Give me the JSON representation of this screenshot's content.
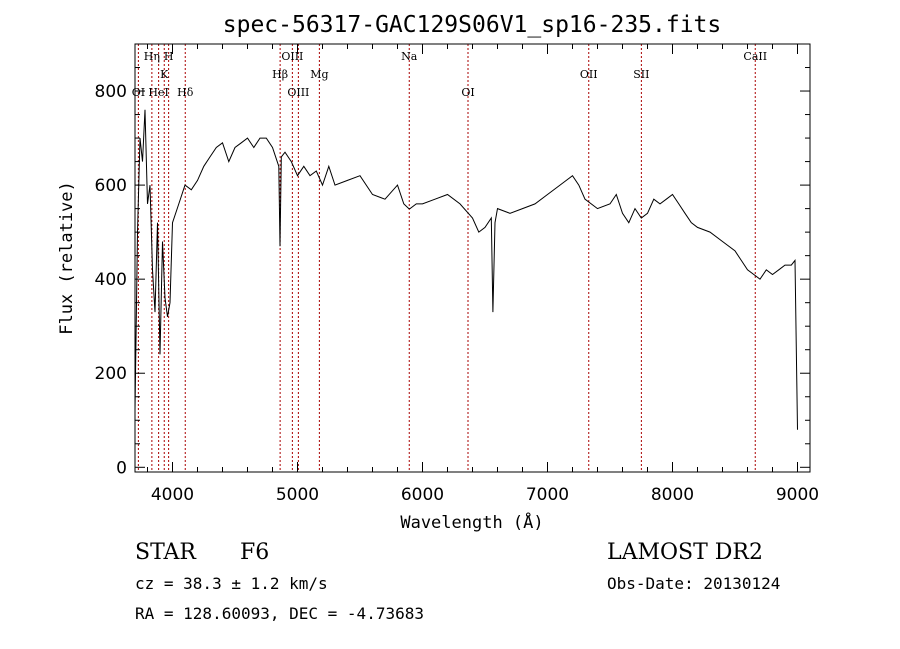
{
  "chart_data": {
    "type": "line",
    "title": "spec-56317-GAC129S06V1_sp16-235.fits",
    "xlabel": "Wavelength (Å)",
    "ylabel": "Flux (relative)",
    "xlim": [
      3700,
      9100
    ],
    "ylim": [
      -10,
      900
    ],
    "xticks": [
      4000,
      5000,
      6000,
      7000,
      8000,
      9000
    ],
    "yticks": [
      0,
      200,
      400,
      600,
      800
    ],
    "grid": false,
    "line_color": "#000000",
    "marker_color": "#aa0000",
    "series": [
      {
        "x": [
          3700,
          3720,
          3740,
          3760,
          3780,
          3800,
          3820,
          3840,
          3860,
          3880,
          3900,
          3920,
          3940,
          3960,
          3980,
          4000,
          4050,
          4100,
          4150,
          4200,
          4250,
          4300,
          4350,
          4400,
          4450,
          4500,
          4550,
          4600,
          4650,
          4700,
          4750,
          4800,
          4850,
          4860,
          4870,
          4900,
          4950,
          5000,
          5050,
          5100,
          5150,
          5200,
          5250,
          5300,
          5400,
          5500,
          5600,
          5700,
          5800,
          5850,
          5890,
          5900,
          5950,
          6000,
          6100,
          6200,
          6300,
          6400,
          6450,
          6500,
          6550,
          6563,
          6580,
          6600,
          6700,
          6800,
          6900,
          7000,
          7100,
          7150,
          7200,
          7250,
          7300,
          7400,
          7500,
          7550,
          7600,
          7650,
          7700,
          7750,
          7800,
          7850,
          7900,
          7950,
          8000,
          8050,
          8100,
          8150,
          8200,
          8300,
          8400,
          8500,
          8550,
          8600,
          8650,
          8700,
          8750,
          8800,
          8850,
          8900,
          8950,
          8980,
          9000
        ],
        "y": [
          120,
          500,
          700,
          650,
          760,
          560,
          600,
          420,
          330,
          520,
          240,
          480,
          360,
          320,
          350,
          520,
          560,
          600,
          590,
          610,
          640,
          660,
          680,
          690,
          650,
          680,
          690,
          700,
          680,
          700,
          700,
          680,
          640,
          470,
          660,
          670,
          650,
          620,
          640,
          620,
          630,
          600,
          640,
          600,
          610,
          620,
          580,
          570,
          600,
          560,
          550,
          550,
          560,
          560,
          570,
          580,
          560,
          530,
          500,
          510,
          530,
          330,
          520,
          550,
          540,
          550,
          560,
          580,
          600,
          610,
          620,
          600,
          570,
          550,
          560,
          580,
          540,
          520,
          550,
          530,
          540,
          570,
          560,
          570,
          580,
          560,
          540,
          520,
          510,
          500,
          480,
          460,
          440,
          420,
          410,
          400,
          420,
          410,
          420,
          430,
          430,
          440,
          80
        ]
      }
    ],
    "lines": [
      {
        "label": "OI",
        "x": 3727,
        "row": 3
      },
      {
        "label": "Hη",
        "x": 3835,
        "row": 1
      },
      {
        "label": "HeI",
        "x": 3889,
        "row": 3
      },
      {
        "label": "K",
        "x": 3934,
        "row": 2
      },
      {
        "label": "H",
        "x": 3969,
        "row": 1
      },
      {
        "label": "Hδ",
        "x": 4102,
        "row": 3
      },
      {
        "label": "Hβ",
        "x": 4861,
        "row": 2
      },
      {
        "label": "OIII",
        "x": 4959,
        "row": 1
      },
      {
        "label": "OIII",
        "x": 5007,
        "row": 3
      },
      {
        "label": "Mg",
        "x": 5175,
        "row": 2
      },
      {
        "label": "Na",
        "x": 5894,
        "row": 1
      },
      {
        "label": "OI",
        "x": 6364,
        "row": 3
      },
      {
        "label": "OII",
        "x": 7330,
        "row": 2
      },
      {
        "label": "SII",
        "x": 7751,
        "row": 2
      },
      {
        "label": "CaII",
        "x": 8662,
        "row": 1
      }
    ]
  },
  "info": {
    "object_class": "STAR",
    "subclass": "F6",
    "survey": "LAMOST DR2",
    "redshift": "cz = 38.3 ± 1.2 km/s",
    "obs_date": "Obs-Date: 20130124",
    "coords": "RA = 128.60093, DEC =  -4.73683"
  }
}
